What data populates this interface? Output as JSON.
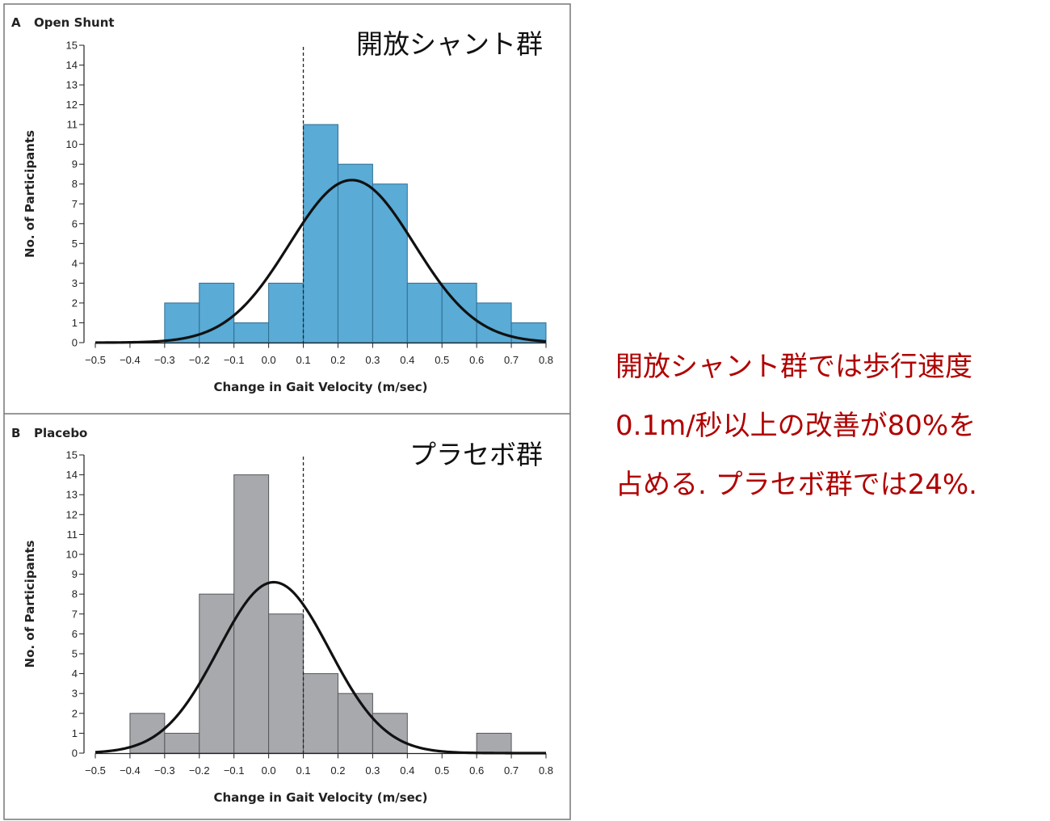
{
  "annotation": {
    "lines": [
      "開放シャント群では歩行速度",
      "0.1m/秒以上の改善が80%を",
      "占める. プラセボ群では24%."
    ],
    "color": "#b00000"
  },
  "chart_data": [
    {
      "type": "bar",
      "panel_letter": "A",
      "title": "Open Shunt",
      "label_jp": "開放シャント群",
      "xlabel": "Change in Gait Velocity (m/sec)",
      "ylabel": "No. of Participants",
      "xlim": [
        -0.5,
        0.8
      ],
      "ylim": [
        0,
        15
      ],
      "x_ticks": [
        "−0.5",
        "−0.4",
        "−0.3",
        "−0.2",
        "−0.1",
        "0.0",
        "0.1",
        "0.2",
        "0.3",
        "0.4",
        "0.5",
        "0.6",
        "0.7",
        "0.8"
      ],
      "y_ticks": [
        "0",
        "1",
        "2",
        "3",
        "4",
        "5",
        "6",
        "7",
        "8",
        "9",
        "10",
        "11",
        "12",
        "13",
        "14",
        "15"
      ],
      "bins": [
        {
          "from": -0.3,
          "to": -0.2,
          "count": 2
        },
        {
          "from": -0.2,
          "to": -0.1,
          "count": 3
        },
        {
          "from": -0.1,
          "to": 0.0,
          "count": 1
        },
        {
          "from": 0.0,
          "to": 0.1,
          "count": 3
        },
        {
          "from": 0.1,
          "to": 0.2,
          "count": 11
        },
        {
          "from": 0.2,
          "to": 0.3,
          "count": 9
        },
        {
          "from": 0.3,
          "to": 0.4,
          "count": 8
        },
        {
          "from": 0.4,
          "to": 0.5,
          "count": 3
        },
        {
          "from": 0.5,
          "to": 0.6,
          "count": 3
        },
        {
          "from": 0.6,
          "to": 0.7,
          "count": 2
        },
        {
          "from": 0.7,
          "to": 0.8,
          "count": 1
        }
      ],
      "normal_curve": {
        "mean": 0.24,
        "sd": 0.18,
        "peak": 8.2
      },
      "reference_line_x": 0.1,
      "bar_color": "#5aabd6",
      "bar_edge": "#2f6e93"
    },
    {
      "type": "bar",
      "panel_letter": "B",
      "title": "Placebo",
      "label_jp": "プラセボ群",
      "xlabel": "Change in Gait Velocity (m/sec)",
      "ylabel": "No. of Participants",
      "xlim": [
        -0.5,
        0.8
      ],
      "ylim": [
        0,
        15
      ],
      "x_ticks": [
        "−0.5",
        "−0.4",
        "−0.3",
        "−0.2",
        "−0.1",
        "0.0",
        "0.1",
        "0.2",
        "0.3",
        "0.4",
        "0.5",
        "0.6",
        "0.7",
        "0.8"
      ],
      "y_ticks": [
        "0",
        "1",
        "2",
        "3",
        "4",
        "5",
        "6",
        "7",
        "8",
        "9",
        "10",
        "11",
        "12",
        "13",
        "14",
        "15"
      ],
      "bins": [
        {
          "from": -0.4,
          "to": -0.3,
          "count": 2
        },
        {
          "from": -0.3,
          "to": -0.2,
          "count": 1
        },
        {
          "from": -0.2,
          "to": -0.1,
          "count": 8
        },
        {
          "from": -0.1,
          "to": 0.0,
          "count": 14
        },
        {
          "from": 0.0,
          "to": 0.1,
          "count": 7
        },
        {
          "from": 0.1,
          "to": 0.2,
          "count": 4
        },
        {
          "from": 0.2,
          "to": 0.3,
          "count": 3
        },
        {
          "from": 0.3,
          "to": 0.4,
          "count": 2
        },
        {
          "from": 0.6,
          "to": 0.7,
          "count": 1
        }
      ],
      "normal_curve": {
        "mean": 0.015,
        "sd": 0.16,
        "peak": 8.6
      },
      "reference_line_x": 0.1,
      "bar_color": "#a7a9ad",
      "bar_edge": "#55575b"
    }
  ]
}
